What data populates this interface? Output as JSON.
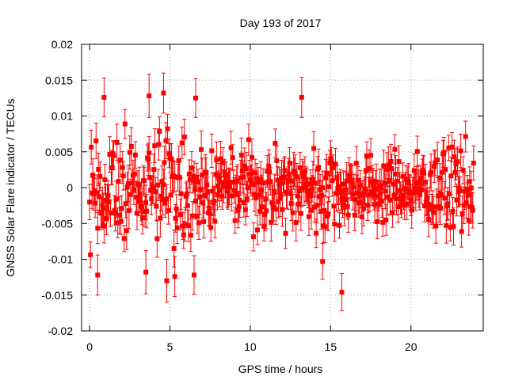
{
  "chart_data": {
    "type": "scatter",
    "title": "Day 193 of 2017",
    "xlabel": "GPS time / hours",
    "ylabel": "GNSS Solar Flare indicator / TECUs",
    "xlim": [
      -0.5,
      24.5
    ],
    "ylim": [
      -0.02,
      0.02
    ],
    "x_ticks": [
      0,
      5,
      10,
      15,
      20
    ],
    "x_tick_labels": [
      "0",
      "5",
      "10",
      "15",
      "20"
    ],
    "y_ticks": [
      -0.02,
      -0.015,
      -0.01,
      -0.005,
      0,
      0.005,
      0.01,
      0.015,
      0.02
    ],
    "y_tick_labels": [
      "-0.02",
      "-0.015",
      "-0.01",
      "-0.005",
      "0",
      "0.005",
      "0.01",
      "0.015",
      "0.02"
    ],
    "grid": true,
    "series": [
      {
        "name": "GNSS Solar Flare indicator",
        "color": "#ff0000",
        "marker": "square",
        "error_bars": true,
        "x_range": [
          0,
          23.9
        ],
        "x_step": 0.05,
        "typical_error": 0.0022,
        "envelope_x": [
          0,
          1,
          2,
          3,
          4,
          5,
          6,
          7,
          8,
          10,
          12,
          14,
          16,
          18,
          20,
          21,
          22,
          23,
          23.9
        ],
        "envelope_sd": [
          0.0038,
          0.0038,
          0.0035,
          0.0036,
          0.0038,
          0.004,
          0.0036,
          0.0033,
          0.003,
          0.0026,
          0.0028,
          0.003,
          0.0028,
          0.0025,
          0.0022,
          0.0023,
          0.0026,
          0.003,
          0.0032
        ],
        "outliers": [
          {
            "x": 0.9,
            "y": 0.0126,
            "err": 0.0027
          },
          {
            "x": 3.7,
            "y": 0.0128,
            "err": 0.003
          },
          {
            "x": 4.6,
            "y": 0.0132,
            "err": 0.0028
          },
          {
            "x": 6.6,
            "y": 0.0125,
            "err": 0.0027
          },
          {
            "x": 13.2,
            "y": 0.0126,
            "err": 0.0028
          },
          {
            "x": 0.5,
            "y": -0.0122,
            "err": 0.0028
          },
          {
            "x": 3.5,
            "y": -0.0118,
            "err": 0.003
          },
          {
            "x": 4.8,
            "y": -0.013,
            "err": 0.003
          },
          {
            "x": 5.3,
            "y": -0.0124,
            "err": 0.0028
          },
          {
            "x": 6.5,
            "y": -0.0122,
            "err": 0.0027
          },
          {
            "x": 14.5,
            "y": -0.0103,
            "err": 0.0025
          },
          {
            "x": 15.7,
            "y": -0.0146,
            "err": 0.0026
          }
        ]
      }
    ]
  }
}
